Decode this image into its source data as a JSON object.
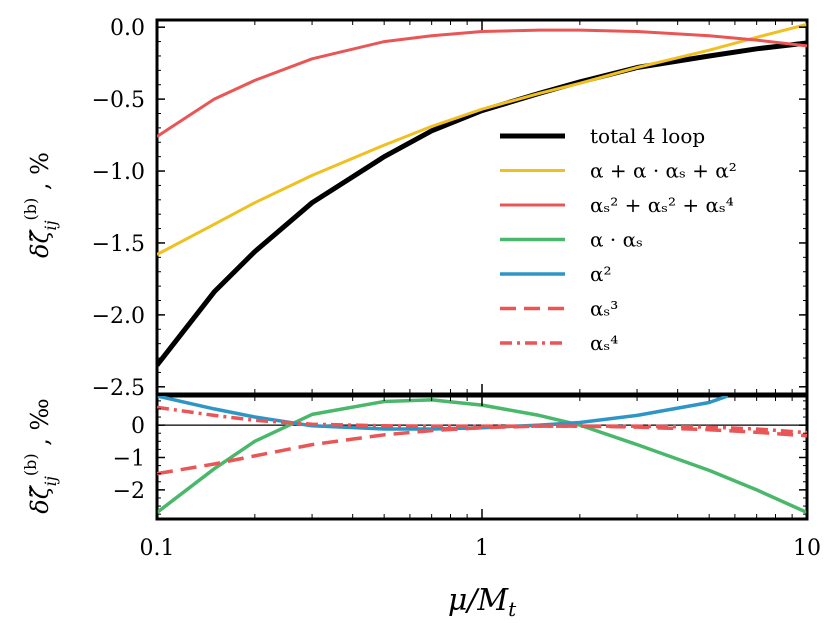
{
  "chart_data": {
    "type": "line",
    "xscale": "log",
    "xlim": [
      0.1,
      10
    ],
    "xlabel": "μ/M_t",
    "x_tick_labels": [
      "0.1",
      "1",
      "10"
    ],
    "panels": [
      {
        "name": "main",
        "ylabel": "δζ̃ᵢⱼ⁽ᵇ⁾ , %",
        "ylim": [
          -2.55,
          0.05
        ],
        "y_tick_values": [
          0.0,
          -0.5,
          -1.0,
          -1.5,
          -2.0,
          -2.5
        ],
        "y_tick_labels": [
          "0.0",
          "−0.5",
          "−1.0",
          "−1.5",
          "−2.0",
          "−2.5"
        ],
        "legend_position": "center-right",
        "series": [
          {
            "name": "total 4 loop",
            "legend_label": "total 4 loop",
            "color": "#000000",
            "style": "solid",
            "width": 5,
            "x": [
              0.1,
              0.15,
              0.2,
              0.3,
              0.5,
              0.7,
              1,
              1.5,
              2,
              3,
              5,
              7,
              10
            ],
            "y": [
              -2.35,
              -1.84,
              -1.56,
              -1.22,
              -0.9,
              -0.72,
              -0.58,
              -0.46,
              -0.38,
              -0.28,
              -0.2,
              -0.15,
              -0.11
            ]
          },
          {
            "name": "alpha + alpha*alpha_s + alpha^2",
            "legend_label": "α + α · αₛ + α²",
            "color": "#f0c020",
            "style": "solid",
            "width": 3,
            "x": [
              0.1,
              0.15,
              0.2,
              0.3,
              0.5,
              0.7,
              1,
              1.5,
              2,
              3,
              5,
              7,
              10
            ],
            "y": [
              -1.58,
              -1.37,
              -1.22,
              -1.03,
              -0.82,
              -0.69,
              -0.57,
              -0.46,
              -0.39,
              -0.28,
              -0.16,
              -0.07,
              0.02
            ]
          },
          {
            "name": "alpha_s^2 + alpha_s^2 + alpha_s^4",
            "legend_label": "αₛ² + αₛ² + αₛ⁴",
            "color": "#ea5556",
            "style": "solid",
            "width": 3,
            "x": [
              0.1,
              0.15,
              0.2,
              0.3,
              0.5,
              0.7,
              1,
              1.5,
              2,
              3,
              5,
              7,
              10
            ],
            "y": [
              -0.76,
              -0.5,
              -0.37,
              -0.22,
              -0.1,
              -0.06,
              -0.03,
              -0.02,
              -0.02,
              -0.03,
              -0.06,
              -0.09,
              -0.13
            ]
          }
        ],
        "legend_only_series": [
          {
            "name": "alpha*alpha_s",
            "legend_label": "α · αₛ",
            "color": "#4ab86b",
            "style": "solid"
          },
          {
            "name": "alpha^2",
            "legend_label": "α²",
            "color": "#2e96c6",
            "style": "solid"
          },
          {
            "name": "alpha_s^3",
            "legend_label": "αₛ³",
            "color": "#ea5556",
            "style": "dashed"
          },
          {
            "name": "alpha_s^4",
            "legend_label": "αₛ⁴",
            "color": "#ea5556",
            "style": "dashdot"
          }
        ]
      },
      {
        "name": "lower",
        "ylabel": "δζ̃ᵢⱼ⁽ᵇ⁾ , ‰",
        "ylim": [
          -2.9,
          0.9
        ],
        "y_tick_values": [
          0,
          -1,
          -2
        ],
        "y_tick_labels": [
          "0",
          "−1",
          "−2"
        ],
        "series": [
          {
            "name": "alpha*alpha_s",
            "color": "#4ab86b",
            "style": "solid",
            "x": [
              0.1,
              0.15,
              0.2,
              0.3,
              0.5,
              0.7,
              1,
              1.5,
              2,
              3,
              5,
              7,
              10
            ],
            "y": [
              -2.7,
              -1.35,
              -0.5,
              0.33,
              0.73,
              0.78,
              0.62,
              0.3,
              0.0,
              -0.6,
              -1.4,
              -2.0,
              -2.7
            ]
          },
          {
            "name": "alpha^2",
            "color": "#2e96c6",
            "style": "solid",
            "x": [
              0.1,
              0.15,
              0.2,
              0.3,
              0.5,
              0.7,
              1,
              1.5,
              2,
              3,
              5,
              5.7
            ],
            "y": [
              0.9,
              0.5,
              0.25,
              -0.02,
              -0.12,
              -0.12,
              -0.08,
              0.0,
              0.08,
              0.3,
              0.7,
              0.9
            ]
          },
          {
            "name": "alpha_s^3",
            "color": "#ea5556",
            "style": "dashed",
            "x": [
              0.1,
              0.15,
              0.2,
              0.3,
              0.5,
              0.7,
              1,
              1.5,
              2,
              3,
              5,
              7,
              10
            ],
            "y": [
              -1.5,
              -1.2,
              -0.95,
              -0.6,
              -0.3,
              -0.17,
              -0.08,
              -0.03,
              -0.03,
              -0.06,
              -0.14,
              -0.22,
              -0.33
            ]
          },
          {
            "name": "alpha_s^4",
            "color": "#ea5556",
            "style": "dashdot",
            "x": [
              0.1,
              0.15,
              0.2,
              0.3,
              0.5,
              0.7,
              1,
              1.5,
              2,
              3,
              5,
              7,
              10
            ],
            "y": [
              0.55,
              0.3,
              0.15,
              0.03,
              -0.02,
              -0.03,
              -0.03,
              -0.03,
              -0.03,
              -0.03,
              -0.06,
              -0.12,
              -0.23
            ]
          }
        ]
      }
    ]
  }
}
